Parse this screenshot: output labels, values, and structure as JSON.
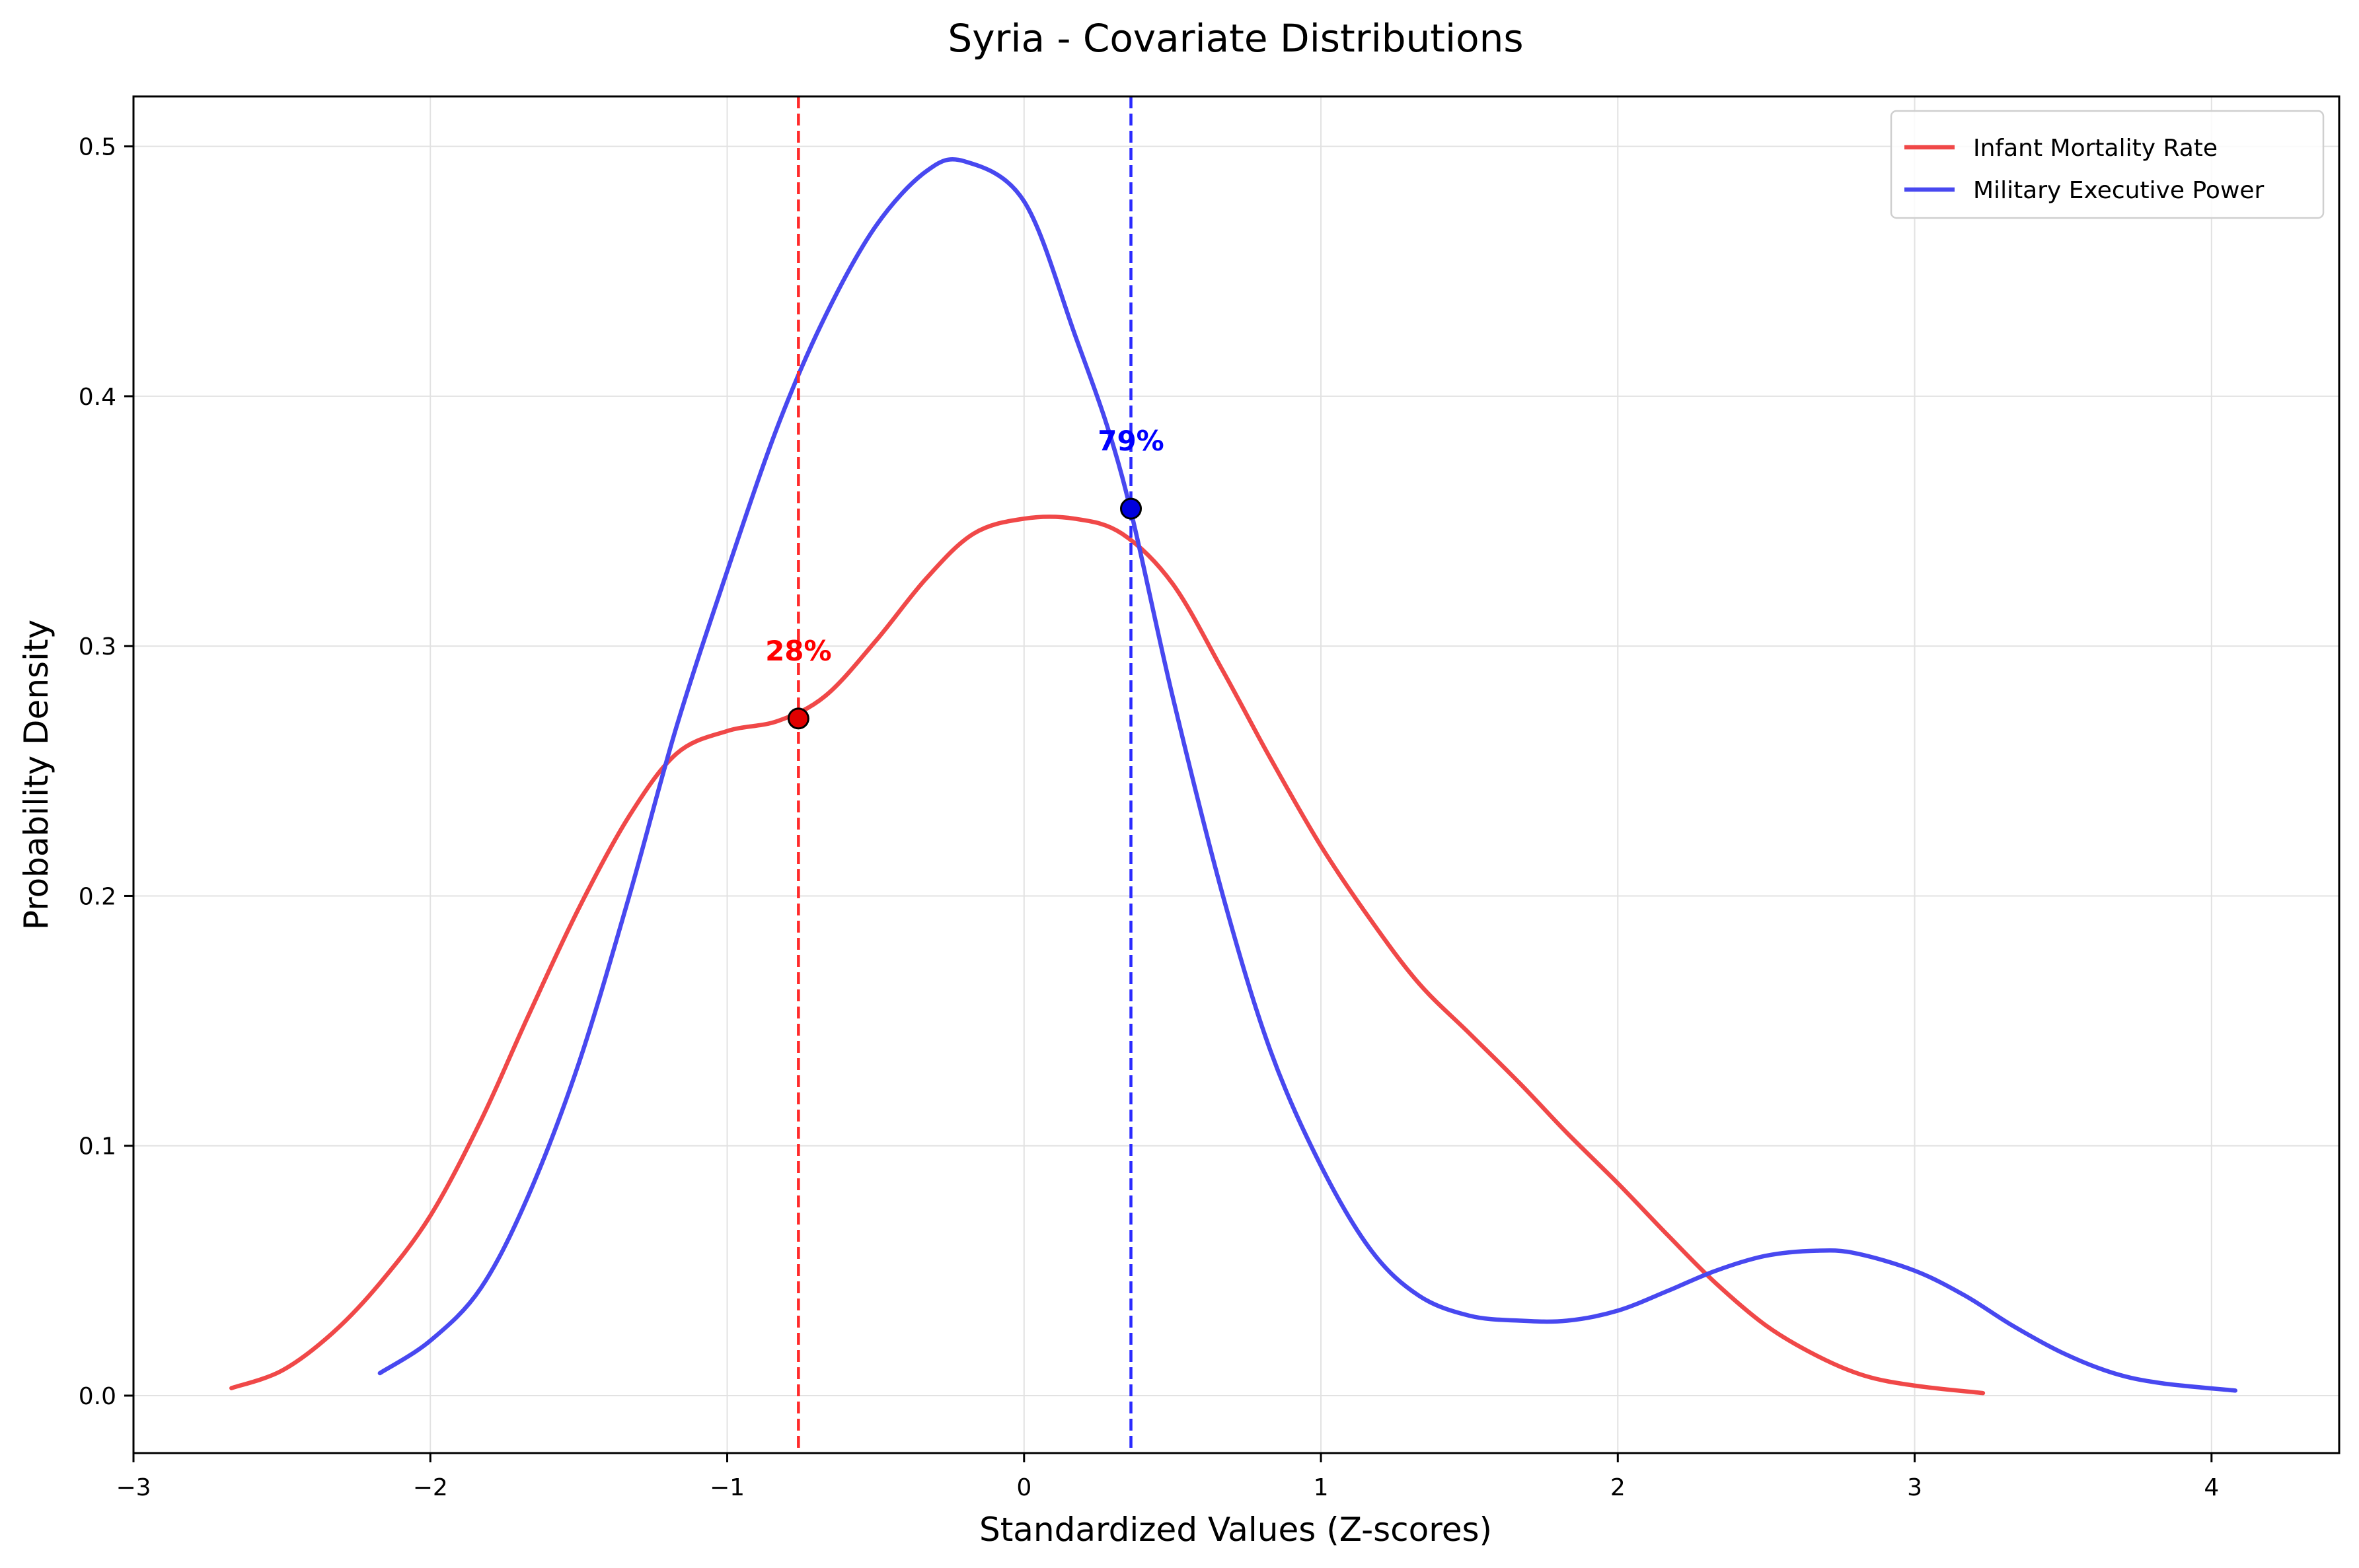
{
  "chart_data": {
    "type": "line",
    "title": "Syria - Covariate Distributions",
    "xlabel": "Standardized Values (Z-scores)",
    "ylabel": "Probability Density",
    "xlim": [
      -3,
      4.43
    ],
    "ylim": [
      -0.023,
      0.52
    ],
    "xticks": [
      -3,
      -2,
      -1,
      0,
      1,
      2,
      3,
      4
    ],
    "xtick_labels": [
      "−3",
      "−2",
      "−1",
      "0",
      "1",
      "2",
      "3",
      "4"
    ],
    "yticks": [
      0.0,
      0.1,
      0.2,
      0.3,
      0.4,
      0.5
    ],
    "ytick_labels": [
      "0.0",
      "0.1",
      "0.2",
      "0.3",
      "0.4",
      "0.5"
    ],
    "grid": true,
    "legend_position": "top-right",
    "series": [
      {
        "name": "Infant Mortality Rate",
        "color": "#f04848",
        "x": [
          -2.67,
          -2.5,
          -2.33,
          -2.17,
          -2.0,
          -1.83,
          -1.67,
          -1.5,
          -1.33,
          -1.17,
          -1.0,
          -0.83,
          -0.67,
          -0.5,
          -0.33,
          -0.17,
          0.0,
          0.17,
          0.33,
          0.5,
          0.67,
          0.83,
          1.0,
          1.17,
          1.33,
          1.5,
          1.67,
          1.83,
          2.0,
          2.17,
          2.33,
          2.5,
          2.67,
          2.83,
          3.0,
          3.23
        ],
        "values": [
          0.003,
          0.01,
          0.025,
          0.045,
          0.072,
          0.11,
          0.152,
          0.195,
          0.232,
          0.257,
          0.266,
          0.27,
          0.28,
          0.302,
          0.327,
          0.345,
          0.351,
          0.351,
          0.345,
          0.325,
          0.29,
          0.255,
          0.22,
          0.19,
          0.165,
          0.145,
          0.125,
          0.105,
          0.085,
          0.064,
          0.045,
          0.028,
          0.016,
          0.008,
          0.004,
          0.001
        ]
      },
      {
        "name": "Military Executive Power",
        "color": "#4848f0",
        "x": [
          -2.17,
          -2.0,
          -1.83,
          -1.67,
          -1.5,
          -1.33,
          -1.17,
          -1.0,
          -0.83,
          -0.67,
          -0.5,
          -0.33,
          -0.2,
          0.0,
          0.17,
          0.33,
          0.5,
          0.67,
          0.83,
          1.0,
          1.17,
          1.33,
          1.5,
          1.67,
          1.83,
          2.0,
          2.17,
          2.33,
          2.5,
          2.67,
          2.8,
          3.0,
          3.17,
          3.33,
          3.5,
          3.67,
          3.83,
          4.08
        ],
        "values": [
          0.009,
          0.022,
          0.043,
          0.08,
          0.133,
          0.2,
          0.268,
          0.33,
          0.388,
          0.432,
          0.468,
          0.49,
          0.494,
          0.478,
          0.425,
          0.368,
          0.28,
          0.2,
          0.138,
          0.092,
          0.058,
          0.04,
          0.032,
          0.03,
          0.03,
          0.034,
          0.042,
          0.05,
          0.056,
          0.058,
          0.057,
          0.05,
          0.04,
          0.028,
          0.017,
          0.009,
          0.005,
          0.002
        ]
      }
    ],
    "reference_lines": [
      {
        "x": -0.76,
        "color": "#ff2a2a",
        "series": "Infant Mortality Rate"
      },
      {
        "x": 0.36,
        "color": "#2a2aff",
        "series": "Military Executive Power"
      }
    ],
    "markers": [
      {
        "x": -0.76,
        "y": 0.271,
        "fill": "#e00000",
        "label": "28%",
        "label_color": "#ff0000"
      },
      {
        "x": 0.36,
        "y": 0.355,
        "fill": "#0000dd",
        "label": "79%",
        "label_color": "#0000ff"
      }
    ]
  }
}
